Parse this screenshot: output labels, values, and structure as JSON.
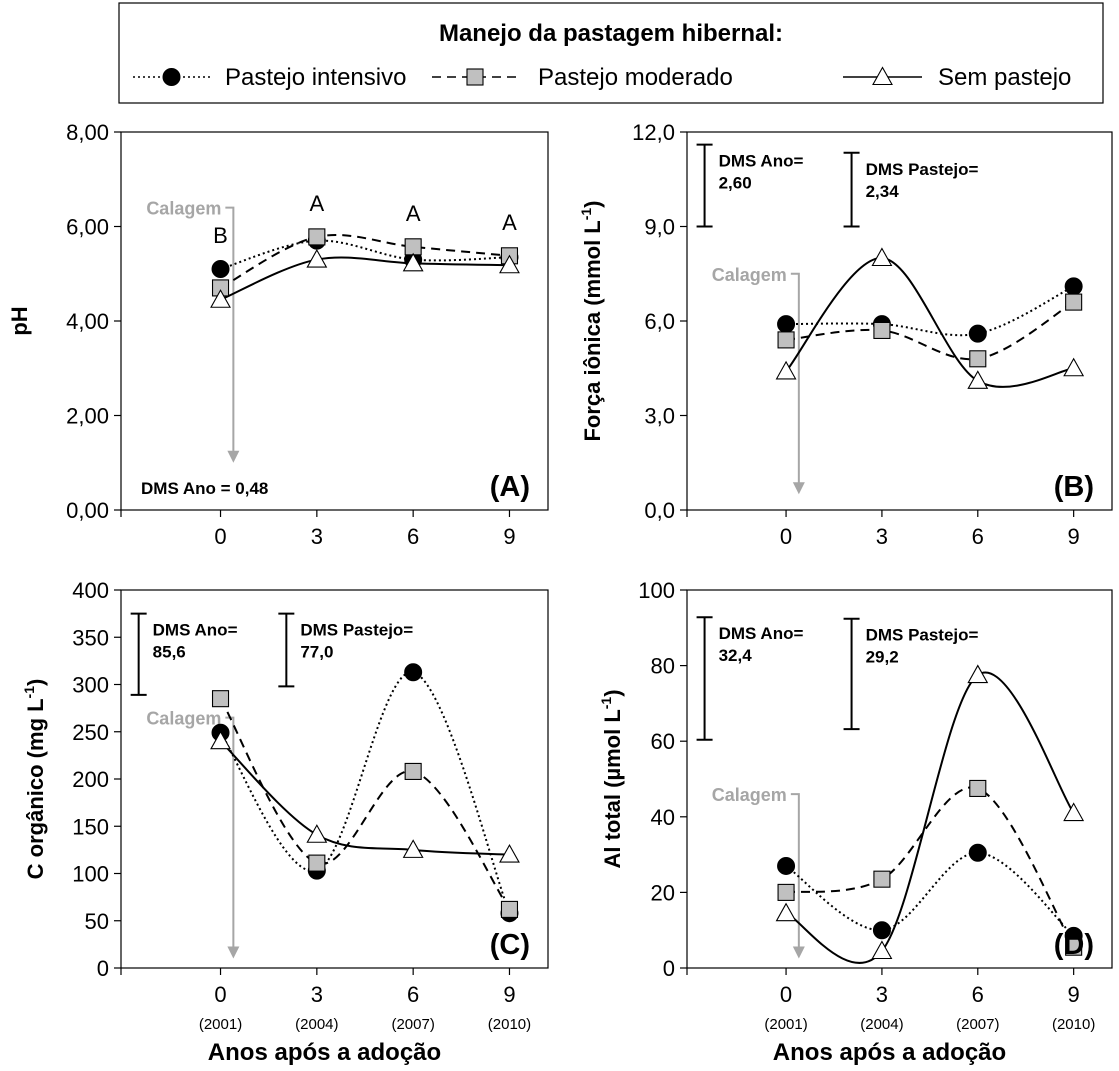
{
  "legend": {
    "title": "Manejo da pastagem hibernal:",
    "items": [
      {
        "label": "Pastejo intensivo",
        "marker": "circle",
        "dash": "dotted"
      },
      {
        "label": "Pastejo moderado",
        "marker": "square",
        "dash": "dashed"
      },
      {
        "label": "Sem pastejo",
        "marker": "triangle",
        "dash": "solid"
      }
    ]
  },
  "x_axis": {
    "ticks": [
      0,
      3,
      6,
      9
    ],
    "tick_years": [
      "(2001)",
      "(2004)",
      "(2007)",
      "(2010)"
    ],
    "xlabel": "Anos após a adoção",
    "xlim": [
      -3.1,
      10.2
    ]
  },
  "colors": {
    "circle_fill": "#000000",
    "square_fill": "#c0c0c0",
    "triangle_fill": "#ffffff",
    "line": "#000000",
    "annotation_gray": "#a6a6a6"
  },
  "chart_data": [
    {
      "type": "line",
      "panel_label": "(A)",
      "ylabel": "pH",
      "ylabel_sup": "",
      "ylabel_suffix": "",
      "ylim": [
        0,
        8
      ],
      "yticks": [
        "0,00",
        "2,00",
        "4,00",
        "6,00",
        "8,00"
      ],
      "ytick_values": [
        0,
        2,
        4,
        6,
        8
      ],
      "x": [
        0,
        3,
        6,
        9
      ],
      "series": [
        {
          "name": "Pastejo intensivo",
          "values": [
            5.1,
            5.7,
            5.3,
            5.35
          ]
        },
        {
          "name": "Pastejo moderado",
          "values": [
            4.7,
            5.78,
            5.57,
            5.38
          ]
        },
        {
          "name": "Sem pastejo",
          "values": [
            4.45,
            5.3,
            5.22,
            5.18
          ]
        }
      ],
      "letters": [
        "B",
        "A",
        "A",
        "A"
      ],
      "calagem": {
        "label": "Calagem",
        "label_y": 6.4,
        "arrow_to": 1.0
      },
      "dms": [
        {
          "text_lines": [
            "DMS Ano = 0,48"
          ],
          "bar": null
        }
      ]
    },
    {
      "type": "line",
      "panel_label": "(B)",
      "ylabel": "Força iônica (mmol L",
      "ylabel_sup": "-1",
      "ylabel_suffix": ")",
      "ylim": [
        0,
        12
      ],
      "yticks": [
        "0,0",
        "3,0",
        "6,0",
        "9,0",
        "12,0"
      ],
      "ytick_values": [
        0,
        3,
        6,
        9,
        12
      ],
      "x": [
        0,
        3,
        6,
        9
      ],
      "series": [
        {
          "name": "Pastejo intensivo",
          "values": [
            5.9,
            5.9,
            5.6,
            7.1
          ]
        },
        {
          "name": "Pastejo moderado",
          "values": [
            5.4,
            5.7,
            4.8,
            6.6
          ]
        },
        {
          "name": "Sem pastejo",
          "values": [
            4.4,
            8.0,
            4.1,
            4.5
          ]
        }
      ],
      "letters": [],
      "calagem": {
        "label": "Calagem",
        "label_y": 7.5,
        "arrow_to": 0.5
      },
      "dms": [
        {
          "text_lines": [
            "DMS Ano=",
            "2,60"
          ],
          "bar": [
            9.0,
            11.6
          ]
        },
        {
          "text_lines": [
            "DMS Pastejo=",
            "2,34"
          ],
          "bar": [
            9.0,
            11.34
          ]
        }
      ]
    },
    {
      "type": "line",
      "panel_label": "(C)",
      "ylabel": "C orgânico (mg L",
      "ylabel_sup": "-1",
      "ylabel_suffix": ")",
      "ylim": [
        0,
        400
      ],
      "yticks": [
        "0",
        "50",
        "100",
        "150",
        "200",
        "250",
        "300",
        "350",
        "400"
      ],
      "ytick_values": [
        0,
        50,
        100,
        150,
        200,
        250,
        300,
        350,
        400
      ],
      "x": [
        0,
        3,
        6,
        9
      ],
      "series": [
        {
          "name": "Pastejo intensivo",
          "values": [
            249,
            103,
            313,
            58
          ]
        },
        {
          "name": "Pastejo moderado",
          "values": [
            285,
            111,
            208,
            62
          ]
        },
        {
          "name": "Sem pastejo",
          "values": [
            240,
            141,
            125,
            120
          ]
        }
      ],
      "letters": [],
      "calagem": {
        "label": "Calagem",
        "label_y": 265,
        "arrow_to": 10
      },
      "dms": [
        {
          "text_lines": [
            "DMS Ano=",
            "85,6"
          ],
          "bar": [
            289,
            375
          ]
        },
        {
          "text_lines": [
            "DMS Pastejo=",
            "77,0"
          ],
          "bar": [
            298,
            375
          ]
        }
      ]
    },
    {
      "type": "line",
      "panel_label": "(D)",
      "ylabel": "Al total (µmol L",
      "ylabel_sup": "-1",
      "ylabel_suffix": ")",
      "ylim": [
        0,
        100
      ],
      "yticks": [
        "0",
        "20",
        "40",
        "60",
        "80",
        "100"
      ],
      "ytick_values": [
        0,
        20,
        40,
        60,
        80,
        100
      ],
      "x": [
        0,
        3,
        6,
        9
      ],
      "series": [
        {
          "name": "Pastejo intensivo",
          "values": [
            27,
            10,
            30.5,
            8.5
          ]
        },
        {
          "name": "Pastejo moderado",
          "values": [
            20,
            23.5,
            47.5,
            5.5
          ]
        },
        {
          "name": "Sem pastejo",
          "values": [
            14.5,
            4.5,
            77.5,
            41
          ]
        }
      ],
      "letters": [],
      "calagem": {
        "label": "Calagem",
        "label_y": 46,
        "arrow_to": 2.5
      },
      "dms": [
        {
          "text_lines": [
            "DMS Ano=",
            "32,4"
          ],
          "bar": [
            60.4,
            92.8
          ]
        },
        {
          "text_lines": [
            "DMS Pastejo=",
            "29,2"
          ],
          "bar": [
            63.2,
            92.4
          ]
        }
      ]
    }
  ]
}
